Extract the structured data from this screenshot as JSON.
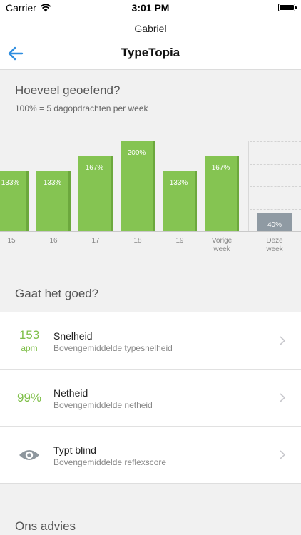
{
  "status_bar": {
    "carrier": "Carrier",
    "time": "3:01 PM"
  },
  "header": {
    "username": "Gabriel",
    "title": "TypeTopia"
  },
  "practice": {
    "title": "Hoeveel geoefend?",
    "subtitle": "100% = 5 dagopdrachten per week"
  },
  "chart_data": {
    "type": "bar",
    "categories": [
      "15",
      "16",
      "17",
      "18",
      "19",
      "Vorige week",
      "Deze week"
    ],
    "categories_lines": [
      [
        "15"
      ],
      [
        "16"
      ],
      [
        "17"
      ],
      [
        "18"
      ],
      [
        "19"
      ],
      [
        "Vorige",
        "week"
      ],
      [
        "Deze",
        "week"
      ]
    ],
    "values": [
      133,
      133,
      167,
      200,
      133,
      167,
      40
    ],
    "labels": [
      "133%",
      "133%",
      "167%",
      "200%",
      "133%",
      "167%",
      "40%"
    ],
    "unit": "%",
    "ylim": [
      0,
      200
    ],
    "colors": {
      "completed_weeks": "#85c452",
      "current_week": "#8f9aa3"
    },
    "grid": true
  },
  "progress": {
    "title": "Gaat het goed?",
    "items": [
      {
        "value": "153",
        "unit": "apm",
        "title": "Snelheid",
        "subtitle": "Bovengemiddelde typesnelheid"
      },
      {
        "value": "99%",
        "title": "Netheid",
        "subtitle": "Bovengemiddelde netheid"
      },
      {
        "icon": "eye-icon",
        "title": "Typt blind",
        "subtitle": "Bovengemiddelde reflexscore"
      }
    ]
  },
  "advice": {
    "title": "Ons advies"
  },
  "colors": {
    "accent_blue": "#2f8ee0",
    "metric_green": "#7fbf49",
    "icon_gray": "#8e979e"
  }
}
